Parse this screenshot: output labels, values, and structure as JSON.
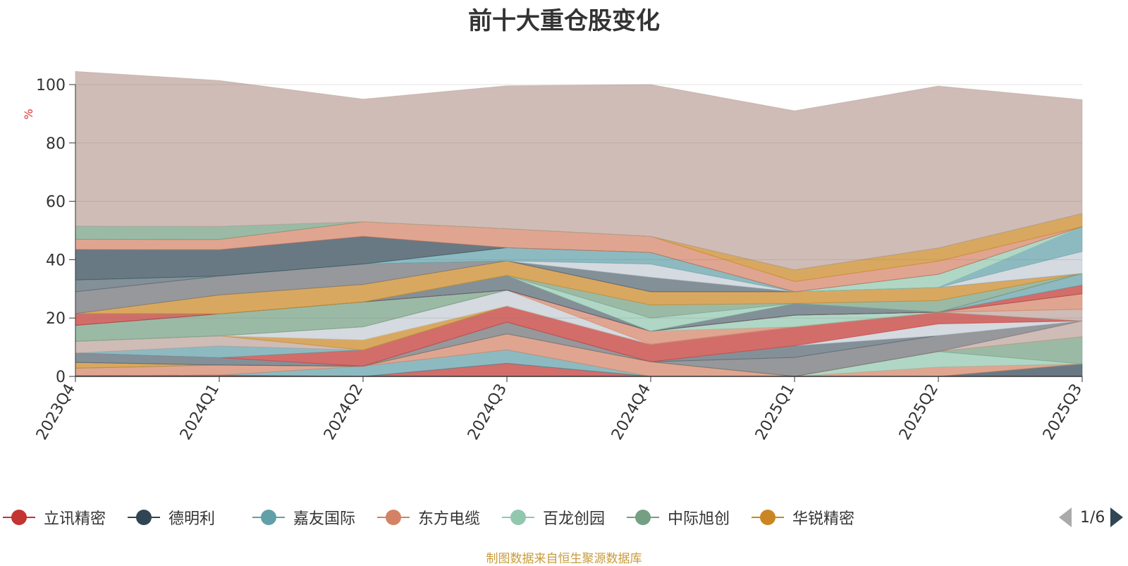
{
  "title": "前十大重仓股变化",
  "source": "制图数据来自恒生聚源数据库",
  "legend_page": "1/6",
  "chart_data": {
    "type": "area",
    "stacked": true,
    "title": "前十大重仓股变化",
    "ylabel": "%",
    "ylim": [
      0,
      100
    ],
    "yticks": [
      0,
      20,
      40,
      60,
      80,
      100
    ],
    "grid": true,
    "legend_position": "bottom",
    "categories": [
      "2023Q4",
      "2024Q1",
      "2024Q2",
      "2024Q3",
      "2024Q4",
      "2025Q1",
      "2025Q2",
      "2025Q3"
    ],
    "series": [
      {
        "name": "立讯精密",
        "color": "#c23531",
        "values": [
          0.3,
          0.4,
          0.0,
          4.5,
          0.0,
          0.0,
          0.0,
          0.0
        ]
      },
      {
        "name": "德明利",
        "color": "#2f4554",
        "values": [
          0.0,
          0.0,
          0.0,
          0.0,
          0.0,
          0.0,
          0.0,
          4.3
        ]
      },
      {
        "name": "嘉友国际",
        "color": "#61a0a8",
        "values": [
          0.0,
          0.0,
          3.5,
          4.6,
          0.0,
          0.0,
          0.0,
          0.0
        ]
      },
      {
        "name": "东方电缆",
        "color": "#d48265",
        "values": [
          2.5,
          3.5,
          0.0,
          5.5,
          5.0,
          0.0,
          3.2,
          0.0
        ]
      },
      {
        "name": "百龙创园",
        "color": "#91c7ae",
        "values": [
          0.0,
          0.0,
          0.0,
          0.0,
          0.0,
          0.0,
          5.3,
          0.0
        ]
      },
      {
        "name": "中际旭创",
        "color": "#749f83",
        "values": [
          0.0,
          0.0,
          0.0,
          0.0,
          0.0,
          0.0,
          0.0,
          9.3
        ]
      },
      {
        "name": "华锐精密",
        "color": "#ca8622",
        "values": [
          2.0,
          0.0,
          0.0,
          0.0,
          0.0,
          0.0,
          0.0,
          0.0
        ]
      }
    ],
    "stack_layers": [
      {
        "color": "#c23531",
        "values": [
          0.3,
          0.4,
          0.0,
          4.5,
          0.0,
          0.0,
          0.0,
          0.0
        ]
      },
      {
        "color": "#2f4554",
        "values": [
          0.0,
          0.0,
          0.0,
          0.0,
          0.0,
          0.0,
          0.0,
          4.3
        ]
      },
      {
        "color": "#61a0a8",
        "values": [
          0.0,
          0.0,
          3.5,
          4.6,
          0.0,
          0.0,
          0.0,
          0.0
        ]
      },
      {
        "color": "#d48265",
        "values": [
          2.5,
          3.5,
          0.0,
          5.5,
          5.0,
          0.0,
          3.2,
          0.0
        ]
      },
      {
        "color": "#91c7ae",
        "values": [
          0.0,
          0.0,
          0.0,
          0.0,
          0.0,
          0.0,
          5.3,
          0.0
        ]
      },
      {
        "color": "#749f83",
        "values": [
          0.0,
          0.0,
          0.0,
          0.0,
          0.0,
          0.0,
          0.0,
          9.3
        ]
      },
      {
        "color": "#ca8622",
        "values": [
          2.0,
          0.0,
          0.0,
          0.0,
          0.0,
          0.0,
          0.0,
          0.0
        ]
      },
      {
        "color": "#bda29a",
        "values": [
          0.0,
          0.0,
          0.0,
          0.0,
          0.0,
          0.0,
          0.0,
          5.4
        ]
      },
      {
        "color": "#6e7074",
        "values": [
          0.0,
          0.0,
          0.0,
          4.0,
          0.0,
          6.5,
          5.5,
          0.0
        ]
      },
      {
        "color": "#546570",
        "values": [
          3.2,
          2.5,
          0.0,
          0.0,
          0.0,
          4.0,
          0.0,
          0.0
        ]
      },
      {
        "color": "#c4ccd3",
        "values": [
          0.0,
          0.0,
          0.0,
          0.0,
          0.0,
          0.0,
          4.0,
          0.0
        ]
      },
      {
        "color": "#c23531",
        "values": [
          0.0,
          0.0,
          5.5,
          5.5,
          6.0,
          6.5,
          4.0,
          0.0
        ]
      },
      {
        "color": "#61a0a8",
        "values": [
          0.0,
          4.0,
          0.0,
          0.0,
          0.0,
          0.0,
          0.0,
          0.0
        ]
      },
      {
        "color": "#bda29a",
        "values": [
          4.0,
          3.5,
          0.0,
          0.0,
          0.0,
          0.0,
          0.0,
          4.0
        ]
      },
      {
        "color": "#ca8622",
        "values": [
          0.0,
          0.0,
          3.5,
          0.0,
          0.0,
          0.0,
          0.0,
          0.0
        ]
      },
      {
        "color": "#c4ccd3",
        "values": [
          0.0,
          0.0,
          4.5,
          5.5,
          0.0,
          0.0,
          0.0,
          0.0
        ]
      },
      {
        "color": "#d48265",
        "values": [
          0.0,
          0.0,
          0.0,
          0.0,
          4.5,
          0.0,
          0.0,
          5.3
        ]
      },
      {
        "color": "#91c7ae",
        "values": [
          0.0,
          0.0,
          0.0,
          0.0,
          0.0,
          4.0,
          0.0,
          0.0
        ]
      },
      {
        "color": "#749f83",
        "values": [
          5.5,
          7.5,
          8.5,
          0.0,
          0.0,
          0.0,
          0.0,
          0.0
        ]
      },
      {
        "color": "#c23531",
        "values": [
          0.0,
          0.0,
          0.0,
          0.0,
          0.0,
          0.0,
          0.0,
          3.0
        ]
      },
      {
        "color": "#61a0a8",
        "values": [
          0.0,
          0.0,
          0.0,
          0.0,
          0.0,
          0.0,
          0.0,
          4.0
        ]
      },
      {
        "color": "#c23531",
        "values": [
          4.0,
          0.0,
          0.0,
          0.0,
          0.0,
          0.0,
          0.0,
          0.0
        ]
      },
      {
        "color": "#546570",
        "values": [
          0.0,
          0.0,
          0.0,
          5.0,
          0.0,
          4.0,
          0.0,
          0.0
        ]
      },
      {
        "color": "#91c7ae",
        "values": [
          0.0,
          0.0,
          0.0,
          0.0,
          4.5,
          0.0,
          0.0,
          0.0
        ]
      },
      {
        "color": "#749f83",
        "values": [
          0.0,
          0.0,
          0.0,
          0.0,
          4.5,
          0.0,
          4.0,
          0.0
        ]
      },
      {
        "color": "#ca8622",
        "values": [
          0.0,
          6.5,
          6.0,
          5.0,
          4.5,
          4.0,
          4.5,
          0.0
        ]
      },
      {
        "color": "#6e7074",
        "values": [
          7.5,
          6.5,
          7.0,
          0.0,
          0.0,
          0.0,
          0.0,
          0.0
        ]
      },
      {
        "color": "#546570",
        "values": [
          4.0,
          0.0,
          0.0,
          0.0,
          5.0,
          0.0,
          0.0,
          0.0
        ]
      },
      {
        "color": "#c4ccd3",
        "values": [
          0.0,
          0.0,
          0.0,
          0.0,
          4.5,
          0.0,
          0.0,
          7.5
        ]
      },
      {
        "color": "#61a0a8",
        "values": [
          0.0,
          0.0,
          0.0,
          4.5,
          4.0,
          0.0,
          0.0,
          8.5
        ]
      },
      {
        "color": "#91c7ae",
        "values": [
          0.0,
          0.0,
          0.0,
          0.0,
          0.0,
          0.0,
          4.5,
          0.0
        ]
      },
      {
        "color": "#2f4554",
        "values": [
          10.5,
          9.0,
          9.5,
          0.0,
          0.0,
          0.0,
          0.0,
          0.0
        ]
      },
      {
        "color": "#d48265",
        "values": [
          3.5,
          3.5,
          5.0,
          6.5,
          5.5,
          3.5,
          4.5,
          0.0
        ]
      },
      {
        "color": "#ca8622",
        "values": [
          0.0,
          0.0,
          0.0,
          0.0,
          0.0,
          4.0,
          4.5,
          4.5
        ]
      },
      {
        "color": "#749f83",
        "values": [
          4.5,
          4.5,
          0.0,
          0.0,
          0.0,
          0.0,
          0.0,
          0.0
        ]
      },
      {
        "color": "#bda29a",
        "values": [
          53.0,
          50.0,
          42.0,
          49.0,
          52.0,
          54.5,
          55.5,
          39.0
        ]
      }
    ]
  }
}
